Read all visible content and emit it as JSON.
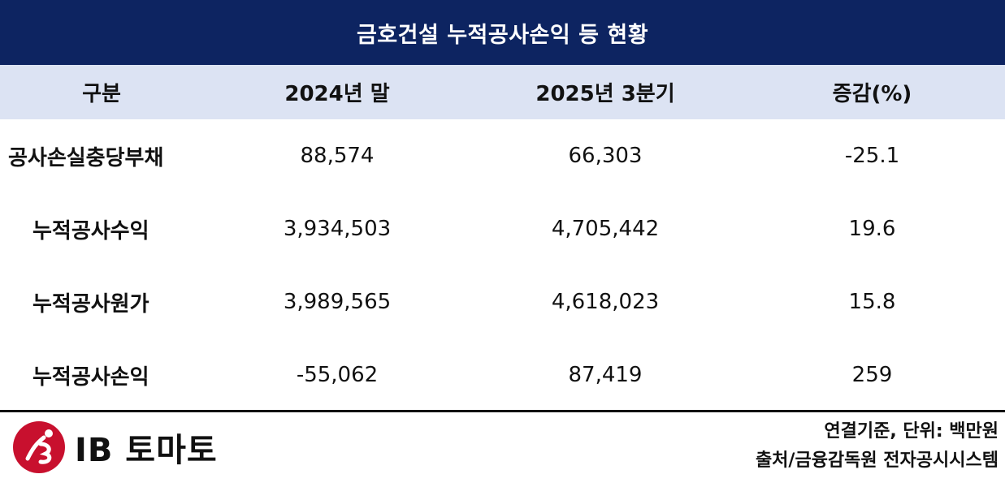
{
  "title": "금호건설 누적공사손익 등 현황",
  "table": {
    "headers": [
      "구분",
      "2024년 말",
      "2025년 3분기",
      "증감(%)"
    ],
    "rows": [
      {
        "label": "공사손실충당부채",
        "values": [
          "88,574",
          "66,303",
          "-25.1"
        ]
      },
      {
        "label": "누적공사수익",
        "values": [
          "3,934,503",
          "4,705,442",
          "19.6"
        ]
      },
      {
        "label": "누적공사원가",
        "values": [
          "3,989,565",
          "4,618,023",
          "15.8"
        ]
      },
      {
        "label": "누적공사손익",
        "values": [
          "-55,062",
          "87,419",
          "259"
        ]
      }
    ]
  },
  "footer": {
    "logo_text": "IB 토마토",
    "note": "연결기준, 단위: 백만원",
    "source": "출처/금융감독원 전자공시시스템"
  },
  "colors": {
    "title_bg": "#0d2461",
    "header_bg": "#dce3f3",
    "logo_red": "#c8102e"
  }
}
